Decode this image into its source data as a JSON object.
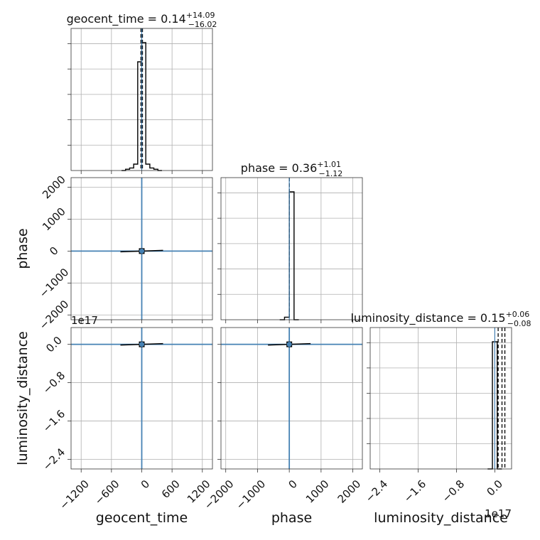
{
  "chart_data": {
    "type": "corner",
    "parameters": [
      {
        "name": "geocent_time",
        "axis_label": "geocent_time",
        "title": {
          "base": "geocent_time = 0.14",
          "plus": "+14.09",
          "minus": "−16.02"
        },
        "range": [
          -1400,
          1400
        ],
        "ticks": [
          -1200,
          -600,
          0,
          600,
          1200
        ],
        "tick_labels": [
          "−1200",
          "−600",
          "0",
          "600",
          "1200"
        ],
        "offset_text": "",
        "truth": 0,
        "quantiles": [
          -15.88,
          0.14,
          14.23
        ],
        "hist_edges": [
          -400,
          -320,
          -240,
          -160,
          -80,
          0,
          80,
          160,
          240,
          320,
          400
        ],
        "hist_counts": [
          0.0,
          0.01,
          0.02,
          0.05,
          0.85,
          1.0,
          0.05,
          0.02,
          0.01,
          0.0
        ]
      },
      {
        "name": "phase",
        "axis_label": "phase",
        "title": {
          "base": "phase = 0.36",
          "plus": "+1.01",
          "minus": "−1.12"
        },
        "range": [
          -2150,
          2300
        ],
        "ticks": [
          -2000,
          -1000,
          0,
          1000,
          2000
        ],
        "tick_labels": [
          "−2000",
          "−1000",
          "0",
          "1000",
          "2000"
        ],
        "offset_text": "",
        "truth": 0,
        "quantiles": [
          -0.76,
          0.36,
          1.37
        ],
        "hist_edges": [
          -300,
          -150,
          0,
          150,
          300
        ],
        "hist_counts": [
          0.0,
          0.02,
          1.0,
          0.0
        ]
      },
      {
        "name": "luminosity_distance",
        "axis_label": "luminosity_distance",
        "title": {
          "base": "luminosity_distance = 0.15",
          "plus": "+0.06",
          "minus": "−0.08"
        },
        "range": [
          -2.6,
          0.35
        ],
        "ticks": [
          -2.4,
          -1.6,
          -0.8,
          0.0
        ],
        "tick_labels": [
          "−2.4",
          "−1.6",
          "−0.8",
          "0.0"
        ],
        "offset_text": "1e17",
        "truth": 0,
        "quantiles": [
          0.07,
          0.15,
          0.21
        ],
        "hist_edges": [
          -0.15,
          -0.05,
          0.05,
          0.15
        ],
        "hist_counts": [
          0.0,
          1.0,
          0.0
        ]
      }
    ],
    "grid": true,
    "truth_color": "#4682b4",
    "hist_color": "#000000"
  }
}
